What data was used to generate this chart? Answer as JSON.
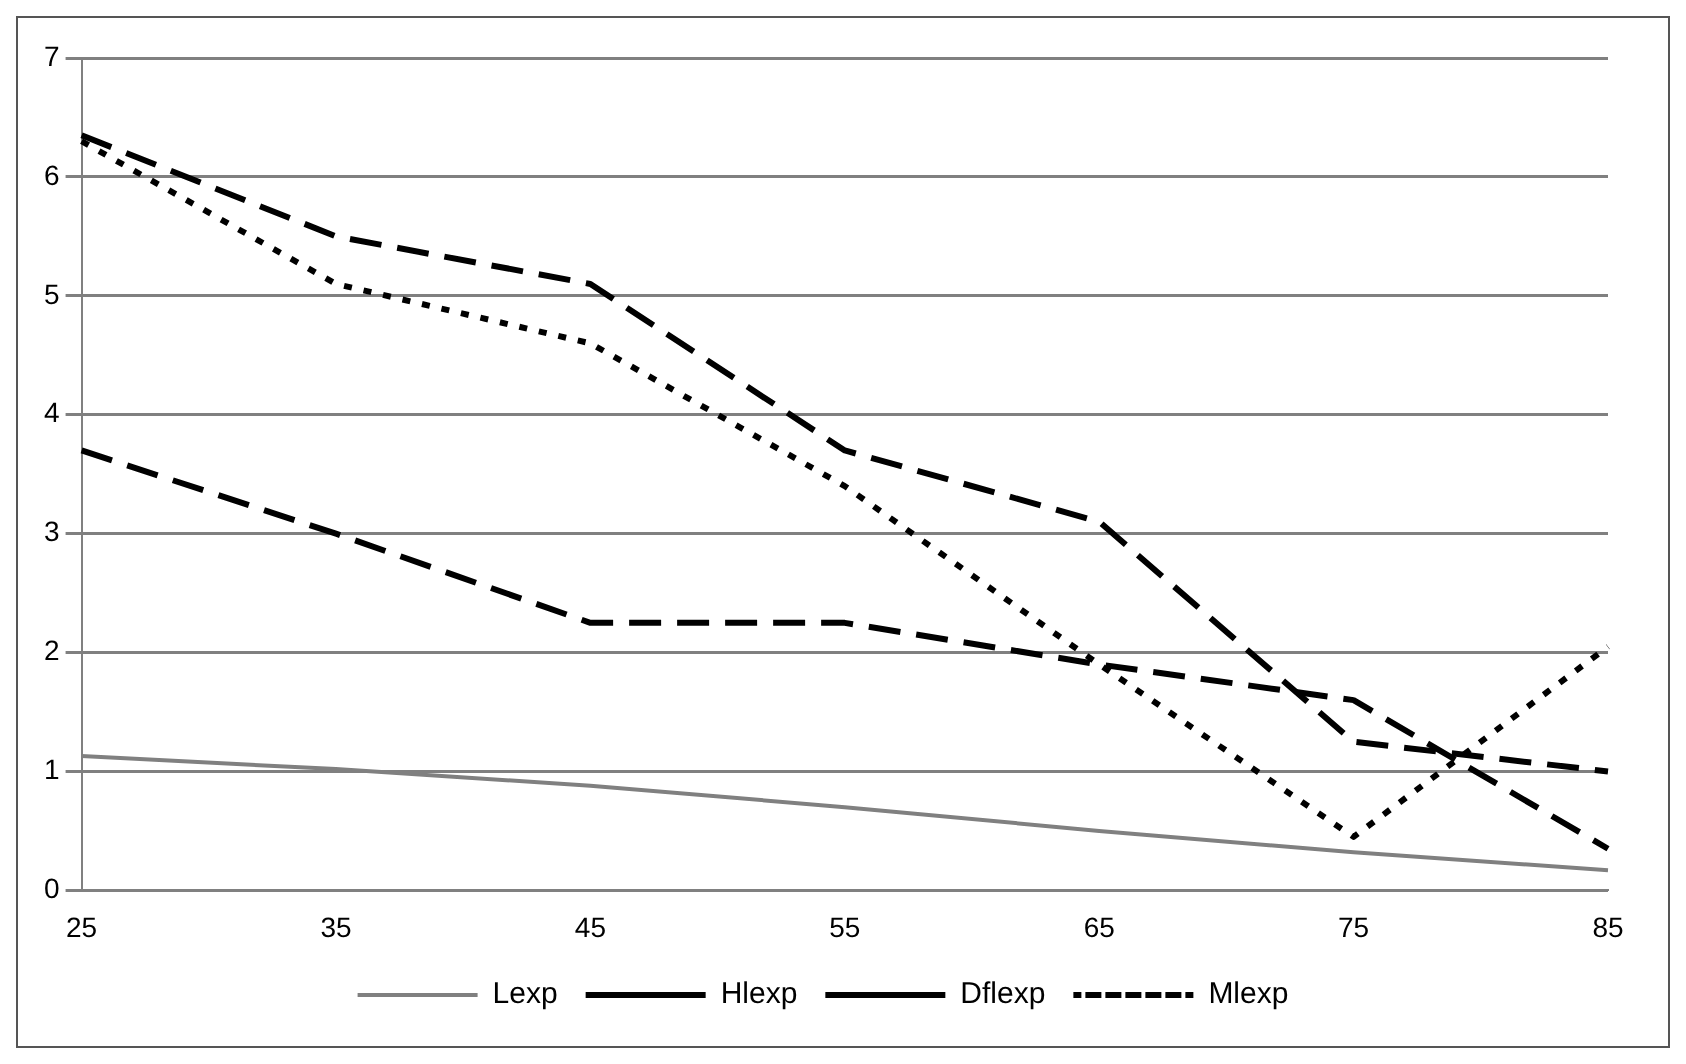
{
  "chart_data": {
    "type": "line",
    "categories": [
      "25",
      "35",
      "45",
      "55",
      "65",
      "75",
      "85"
    ],
    "series": [
      {
        "name": "Lexp",
        "color": "#808080",
        "line_style": "solid",
        "values": [
          1.13,
          1.02,
          0.88,
          0.7,
          0.5,
          0.32,
          0.17
        ]
      },
      {
        "name": "Hlexp",
        "color": "#000000",
        "line_style": "dashed",
        "values": [
          6.35,
          5.5,
          5.1,
          3.7,
          3.1,
          1.25,
          1.0
        ]
      },
      {
        "name": "Dflexp",
        "color": "#000000",
        "line_style": "dashed",
        "values": [
          3.7,
          3.0,
          2.25,
          2.25,
          1.9,
          1.6,
          0.35
        ]
      },
      {
        "name": "Mlexp",
        "color": "#000000",
        "line_style": "dotted",
        "values": [
          6.3,
          5.1,
          4.6,
          3.4,
          1.9,
          0.45,
          2.05
        ]
      }
    ],
    "ylim": [
      0,
      7
    ],
    "yticks": [
      0,
      1,
      2,
      3,
      4,
      5,
      6,
      7
    ],
    "grid": "y",
    "legend": "bottom",
    "marker": "none"
  }
}
